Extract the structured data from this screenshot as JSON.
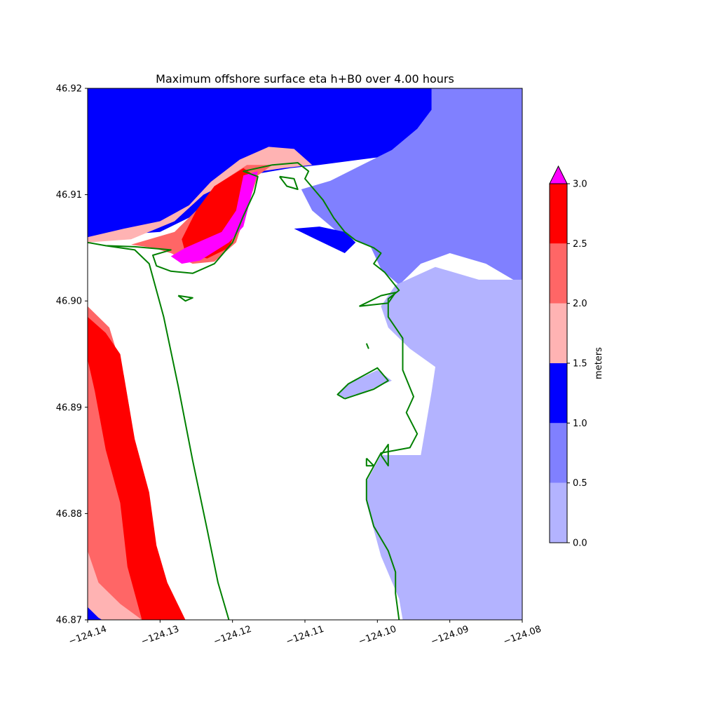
{
  "chart_data": {
    "type": "heatmap",
    "title": "Maximum offshore surface eta h+B0 over 4.00 hours",
    "xlabel": "",
    "ylabel": "",
    "xlim": [
      -124.14,
      -124.08
    ],
    "ylim": [
      46.87,
      46.92
    ],
    "x_ticks": [
      {
        "value": -124.14,
        "label": "−124.14"
      },
      {
        "value": -124.13,
        "label": "−124.13"
      },
      {
        "value": -124.12,
        "label": "−124.12"
      },
      {
        "value": -124.11,
        "label": "−124.11"
      },
      {
        "value": -124.1,
        "label": "−124.10"
      },
      {
        "value": -124.09,
        "label": "−124.09"
      },
      {
        "value": -124.08,
        "label": "−124.08"
      }
    ],
    "y_ticks": [
      {
        "value": 46.87,
        "label": "46.87"
      },
      {
        "value": 46.88,
        "label": "46.88"
      },
      {
        "value": 46.89,
        "label": "46.89"
      },
      {
        "value": 46.9,
        "label": "46.90"
      },
      {
        "value": 46.91,
        "label": "46.91"
      },
      {
        "value": 46.92,
        "label": "46.92"
      }
    ],
    "grid": false,
    "colorbar": {
      "label": "meters",
      "extend": "max",
      "over_color": "#ff00ff",
      "levels": [
        {
          "from": 0.0,
          "to": 0.5,
          "color": "#b3b3ff"
        },
        {
          "from": 0.5,
          "to": 1.0,
          "color": "#8080ff"
        },
        {
          "from": 1.0,
          "to": 1.5,
          "color": "#0000ff"
        },
        {
          "from": 1.5,
          "to": 2.0,
          "color": "#ffb3b3"
        },
        {
          "from": 2.0,
          "to": 2.5,
          "color": "#ff6666"
        },
        {
          "from": 2.5,
          "to": 3.0,
          "color": "#ff0000"
        }
      ],
      "ticks": [
        {
          "value": 0.0,
          "label": "0.0"
        },
        {
          "value": 0.5,
          "label": "0.5"
        },
        {
          "value": 1.0,
          "label": "1.0"
        },
        {
          "value": 1.5,
          "label": "1.5"
        },
        {
          "value": 2.0,
          "label": "2.0"
        },
        {
          "value": 2.5,
          "label": "2.5"
        },
        {
          "value": 3.0,
          "label": "3.0"
        }
      ]
    },
    "shoreline_color": "#008000",
    "land_color": "#ffffff",
    "regions": [
      {
        "name": "north-offshore",
        "level": "1.0-1.5",
        "color": "#0000ff",
        "polygon": [
          [
            -124.14,
            46.92
          ],
          [
            -124.0925,
            46.92
          ],
          [
            -124.0925,
            46.9175
          ],
          [
            -124.095,
            46.915
          ],
          [
            -124.1,
            46.9135
          ],
          [
            -124.108,
            46.9128
          ],
          [
            -124.112,
            46.9125
          ],
          [
            -124.118,
            46.9118
          ],
          [
            -124.124,
            46.9085
          ],
          [
            -124.13,
            46.9065
          ],
          [
            -124.14,
            46.906
          ]
        ]
      },
      {
        "name": "north-pink",
        "level": "1.5-2.0",
        "color": "#ffb3b3",
        "polygon": [
          [
            -124.14,
            46.906
          ],
          [
            -124.135,
            46.9068
          ],
          [
            -124.13,
            46.9075
          ],
          [
            -124.126,
            46.909
          ],
          [
            -124.123,
            46.9112
          ],
          [
            -124.119,
            46.9133
          ],
          [
            -124.115,
            46.9145
          ],
          [
            -124.1115,
            46.9143
          ],
          [
            -124.109,
            46.9128
          ],
          [
            -124.113,
            46.9125
          ],
          [
            -124.118,
            46.912
          ],
          [
            -124.124,
            46.91
          ],
          [
            -124.128,
            46.9075
          ],
          [
            -124.134,
            46.9058
          ],
          [
            -124.14,
            46.9055
          ]
        ]
      },
      {
        "name": "north-salmon",
        "level": "2.0-2.5",
        "color": "#ff6666",
        "polygon": [
          [
            -124.134,
            46.9053
          ],
          [
            -124.128,
            46.9065
          ],
          [
            -124.125,
            46.9085
          ],
          [
            -124.122,
            46.911
          ],
          [
            -124.118,
            46.9128
          ],
          [
            -124.1145,
            46.9128
          ],
          [
            -124.1165,
            46.9118
          ],
          [
            -124.1195,
            46.9055
          ],
          [
            -124.1225,
            46.9037
          ],
          [
            -124.1255,
            46.9035
          ],
          [
            -124.1285,
            46.9045
          ],
          [
            -124.131,
            46.905
          ]
        ]
      },
      {
        "name": "north-red",
        "level": "2.5-3.0",
        "color": "#ff0000",
        "polygon": [
          [
            -124.127,
            46.9058
          ],
          [
            -124.125,
            46.9085
          ],
          [
            -124.1225,
            46.9108
          ],
          [
            -124.1185,
            46.9125
          ],
          [
            -124.117,
            46.9118
          ],
          [
            -124.119,
            46.9075
          ],
          [
            -124.1205,
            46.905
          ],
          [
            -124.1235,
            46.904
          ],
          [
            -124.1265,
            46.9045
          ]
        ]
      },
      {
        "name": "north-magenta",
        "level": "above-3.0",
        "color": "#ff00ff",
        "polygon": [
          [
            -124.1185,
            46.9118
          ],
          [
            -124.1165,
            46.9122
          ],
          [
            -124.117,
            46.911
          ],
          [
            -124.1185,
            46.907
          ],
          [
            -124.1205,
            46.9055
          ],
          [
            -124.1245,
            46.9038
          ],
          [
            -124.127,
            46.9035
          ],
          [
            -124.1285,
            46.9042
          ],
          [
            -124.1265,
            46.905
          ],
          [
            -124.1215,
            46.9065
          ],
          [
            -124.1195,
            46.9085
          ]
        ]
      },
      {
        "name": "south-salmon",
        "level": "2.0-2.5",
        "color": "#ff6666",
        "polygon": [
          [
            -124.14,
            46.8995
          ],
          [
            -124.137,
            46.8975
          ],
          [
            -124.135,
            46.893
          ],
          [
            -124.134,
            46.889
          ],
          [
            -124.133,
            46.884
          ],
          [
            -124.132,
            46.879
          ],
          [
            -124.131,
            46.8745
          ],
          [
            -124.1295,
            46.87
          ],
          [
            -124.14,
            46.87
          ]
        ]
      },
      {
        "name": "south-red",
        "level": "2.5-3.0",
        "color": "#ff0000",
        "polygon": [
          [
            -124.14,
            46.8985
          ],
          [
            -124.1375,
            46.897
          ],
          [
            -124.1355,
            46.895
          ],
          [
            -124.1345,
            46.891
          ],
          [
            -124.1335,
            46.887
          ],
          [
            -124.1315,
            46.882
          ],
          [
            -124.1305,
            46.877
          ],
          [
            -124.129,
            46.8735
          ],
          [
            -124.1265,
            46.87
          ],
          [
            -124.1325,
            46.87
          ],
          [
            -124.1345,
            46.875
          ],
          [
            -124.1355,
            46.881
          ],
          [
            -124.1375,
            46.886
          ],
          [
            -124.139,
            46.8915
          ],
          [
            -124.14,
            46.8945
          ]
        ]
      },
      {
        "name": "south-pink",
        "level": "1.5-2.0",
        "color": "#ffb3b3",
        "polygon": [
          [
            -124.14,
            46.8765
          ],
          [
            -124.1385,
            46.8735
          ],
          [
            -124.1355,
            46.8715
          ],
          [
            -124.1325,
            46.87
          ],
          [
            -124.14,
            46.87
          ]
        ]
      },
      {
        "name": "south-blue",
        "level": "1.0-1.5",
        "color": "#0000ff",
        "polygon": [
          [
            -124.14,
            46.8712
          ],
          [
            -124.1385,
            46.8702
          ],
          [
            -124.138,
            46.87
          ],
          [
            -124.14,
            46.87
          ]
        ]
      },
      {
        "name": "east-dark",
        "level": "0.5-1.0",
        "color": "#8080ff",
        "polygon": [
          [
            -124.0925,
            46.92
          ],
          [
            -124.08,
            46.92
          ],
          [
            -124.08,
            46.9015
          ],
          [
            -124.085,
            46.9035
          ],
          [
            -124.09,
            46.9045
          ],
          [
            -124.094,
            46.9035
          ],
          [
            -124.097,
            46.9015
          ],
          [
            -124.0995,
            46.903
          ],
          [
            -124.101,
            46.9052
          ],
          [
            -124.1035,
            46.9058
          ],
          [
            -124.1055,
            46.9065
          ],
          [
            -124.109,
            46.9085
          ],
          [
            -124.1105,
            46.9105
          ],
          [
            -124.1065,
            46.9113
          ],
          [
            -124.103,
            46.9125
          ],
          [
            -124.098,
            46.9142
          ],
          [
            -124.0945,
            46.9162
          ],
          [
            -124.0925,
            46.918
          ]
        ]
      },
      {
        "name": "east-light",
        "level": "0.0-0.5",
        "color": "#b3b3ff",
        "polygon": [
          [
            -124.08,
            46.902
          ],
          [
            -124.08,
            46.87
          ],
          [
            -124.0965,
            46.87
          ],
          [
            -124.097,
            46.872
          ],
          [
            -124.0995,
            46.876
          ],
          [
            -124.1015,
            46.881
          ],
          [
            -124.1015,
            46.883
          ],
          [
            -124.0995,
            46.8855
          ],
          [
            -124.094,
            46.8855
          ],
          [
            -124.0925,
            46.8915
          ],
          [
            -124.092,
            46.8938
          ],
          [
            -124.0955,
            46.8955
          ],
          [
            -124.0985,
            46.8975
          ],
          [
            -124.0995,
            46.8995
          ],
          [
            -124.0975,
            46.9015
          ],
          [
            -124.092,
            46.9032
          ],
          [
            -124.086,
            46.902
          ]
        ]
      },
      {
        "name": "river-light",
        "level": "0.0-0.5",
        "color": "#b3b3ff",
        "polygon": [
          [
            -124.1045,
            46.8908
          ],
          [
            -124.1005,
            46.8918
          ],
          [
            -124.098,
            46.8925
          ],
          [
            -124.1,
            46.8935
          ],
          [
            -124.104,
            46.8922
          ],
          [
            -124.1055,
            46.8912
          ]
        ]
      },
      {
        "name": "bay-blue",
        "level": "1.0-1.5",
        "color": "#0000ff",
        "polygon": [
          [
            -124.1115,
            46.9068
          ],
          [
            -124.1085,
            46.9058
          ],
          [
            -124.1045,
            46.9045
          ],
          [
            -124.103,
            46.9055
          ],
          [
            -124.1045,
            46.9065
          ],
          [
            -124.108,
            46.907
          ]
        ]
      }
    ],
    "shoreline": [
      [
        [
          -124.14,
          46.9055
        ],
        [
          -124.1375,
          46.9052
        ],
        [
          -124.1335,
          46.9051
        ],
        [
          -124.1285,
          46.9048
        ],
        [
          -124.131,
          46.9043
        ],
        [
          -124.1305,
          46.9033
        ],
        [
          -124.1285,
          46.9028
        ],
        [
          -124.1255,
          46.9026
        ],
        [
          -124.1225,
          46.9035
        ],
        [
          -124.12,
          46.9055
        ],
        [
          -124.1185,
          46.908
        ],
        [
          -124.117,
          46.9102
        ],
        [
          -124.1165,
          46.9117
        ],
        [
          -124.1185,
          46.9122
        ],
        [
          -124.1145,
          46.9128
        ],
        [
          -124.111,
          46.913
        ],
        [
          -124.1095,
          46.9122
        ],
        [
          -124.11,
          46.9115
        ],
        [
          -124.1075,
          46.9095
        ],
        [
          -124.106,
          46.9078
        ],
        [
          -124.1045,
          46.9065
        ],
        [
          -124.103,
          46.9057
        ],
        [
          -124.1005,
          46.905
        ],
        [
          -124.0995,
          46.9045
        ],
        [
          -124.1005,
          46.9035
        ],
        [
          -124.099,
          46.9027
        ],
        [
          -124.097,
          46.901
        ],
        [
          -124.0985,
          46.9002
        ],
        [
          -124.0985,
          46.8985
        ],
        [
          -124.0965,
          46.8965
        ],
        [
          -124.0965,
          46.8935
        ],
        [
          -124.095,
          46.891
        ],
        [
          -124.096,
          46.8895
        ],
        [
          -124.0945,
          46.8875
        ],
        [
          -124.0955,
          46.8862
        ],
        [
          -124.0995,
          46.8857
        ],
        [
          -124.1015,
          46.8832
        ],
        [
          -124.1015,
          46.8813
        ],
        [
          -124.1005,
          46.8788
        ],
        [
          -124.0985,
          46.8765
        ],
        [
          -124.0975,
          46.8745
        ],
        [
          -124.0975,
          46.8725
        ],
        [
          -124.097,
          46.87
        ]
      ],
      [
        [
          -124.1375,
          46.9052
        ],
        [
          -124.1335,
          46.9048
        ],
        [
          -124.1315,
          46.9035
        ],
        [
          -124.1295,
          46.8985
        ],
        [
          -124.1275,
          46.892
        ],
        [
          -124.1255,
          46.885
        ],
        [
          -124.1235,
          46.8785
        ],
        [
          -124.122,
          46.8735
        ],
        [
          -124.1205,
          46.87
        ]
      ],
      [
        [
          -124.1135,
          46.9117
        ],
        [
          -124.1115,
          46.9115
        ],
        [
          -124.111,
          46.9105
        ],
        [
          -124.1125,
          46.9108
        ],
        [
          -124.1135,
          46.9117
        ]
      ],
      [
        [
          -124.1045,
          46.8908
        ],
        [
          -124.1005,
          46.8917
        ],
        [
          -124.0985,
          46.8925
        ],
        [
          -124.1,
          46.8937
        ],
        [
          -124.104,
          46.8922
        ],
        [
          -124.1055,
          46.8912
        ],
        [
          -124.1045,
          46.8908
        ]
      ],
      [
        [
          -124.1025,
          46.8995
        ],
        [
          -124.0985,
          46.8998
        ],
        [
          -124.0975,
          46.9008
        ],
        [
          -124.0995,
          46.9005
        ],
        [
          -124.1025,
          46.8995
        ]
      ],
      [
        [
          -124.1015,
          46.896
        ],
        [
          -124.1012,
          46.8955
        ]
      ],
      [
        [
          -124.1015,
          46.8852
        ],
        [
          -124.1005,
          46.8845
        ],
        [
          -124.1015,
          46.8845
        ],
        [
          -124.1015,
          46.8852
        ]
      ],
      [
        [
          -124.1275,
          46.9005
        ],
        [
          -124.1265,
          46.9
        ],
        [
          -124.1255,
          46.9003
        ],
        [
          -124.1275,
          46.9005
        ]
      ],
      [
        [
          -124.0995,
          46.8855
        ],
        [
          -124.0985,
          46.8845
        ],
        [
          -124.0985,
          46.8865
        ],
        [
          -124.0995,
          46.8855
        ]
      ]
    ]
  }
}
